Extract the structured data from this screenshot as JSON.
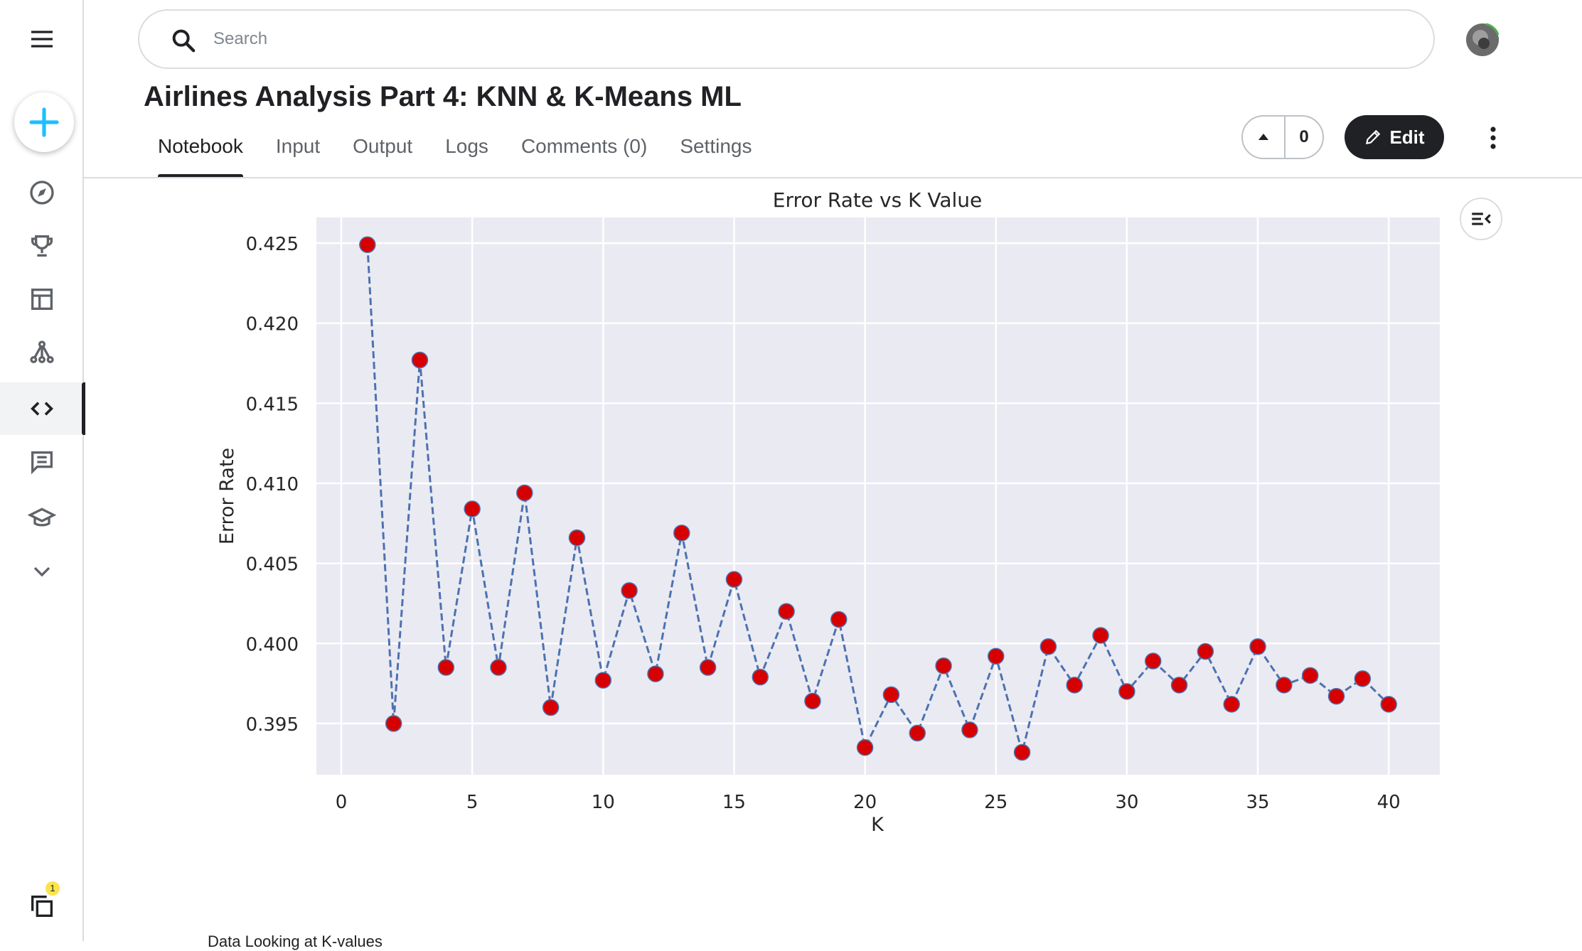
{
  "header": {
    "search_placeholder": "Search",
    "title": "Airlines Analysis Part 4: KNN & K-Means ML",
    "tabs": [
      {
        "label": "Notebook",
        "active": true
      },
      {
        "label": "Input"
      },
      {
        "label": "Output"
      },
      {
        "label": "Logs"
      },
      {
        "label": "Comments (0)"
      },
      {
        "label": "Settings"
      }
    ],
    "vote_count": "0",
    "edit_label": "Edit"
  },
  "sidebar": {
    "items": [
      "menu-icon",
      "create-icon",
      "compass-icon",
      "trophy-icon",
      "table-icon",
      "graph-icon",
      "code-icon",
      "comments-icon",
      "school-icon",
      "chevron-down-icon",
      "copies-icon"
    ],
    "active": "code-icon",
    "notification_count": "1"
  },
  "colors": {
    "accent_blue": "#20beff",
    "chart_bg": "#eaeaf2",
    "line": "#4c72b0",
    "marker": "#d70000",
    "dark_button": "#202124"
  },
  "chart_data": {
    "type": "line",
    "title": "Error Rate vs K Value",
    "xlabel": "K",
    "ylabel": "Error Rate",
    "xlim": [
      -0.95,
      41.95
    ],
    "ylim": [
      0.3918,
      0.4266
    ],
    "xticks": [
      0,
      5,
      10,
      15,
      20,
      25,
      30,
      35,
      40
    ],
    "yticks": [
      "0.395",
      "0.400",
      "0.405",
      "0.410",
      "0.415",
      "0.420",
      "0.425"
    ],
    "grid": true,
    "line_style": "dashed",
    "marker": "o",
    "x": [
      1,
      2,
      3,
      4,
      5,
      6,
      7,
      8,
      9,
      10,
      11,
      12,
      13,
      14,
      15,
      16,
      17,
      18,
      19,
      20,
      21,
      22,
      23,
      24,
      25,
      26,
      27,
      28,
      29,
      30,
      31,
      32,
      33,
      34,
      35,
      36,
      37,
      38,
      39,
      40
    ],
    "y": [
      0.4249,
      0.395,
      0.4177,
      0.3985,
      0.4084,
      0.3985,
      0.4094,
      0.396,
      0.4066,
      0.3977,
      0.4033,
      0.3981,
      0.4069,
      0.3985,
      0.404,
      0.3979,
      0.402,
      0.3964,
      0.4015,
      0.3935,
      0.3968,
      0.3944,
      0.3986,
      0.3946,
      0.3992,
      0.3932,
      0.3998,
      0.3974,
      0.4005,
      0.397,
      0.3989,
      0.3974,
      0.3995,
      0.3962,
      0.3998,
      0.3974,
      0.398,
      0.3967,
      0.3978,
      0.3962
    ]
  },
  "cut_text": "Data Looking at K-values"
}
